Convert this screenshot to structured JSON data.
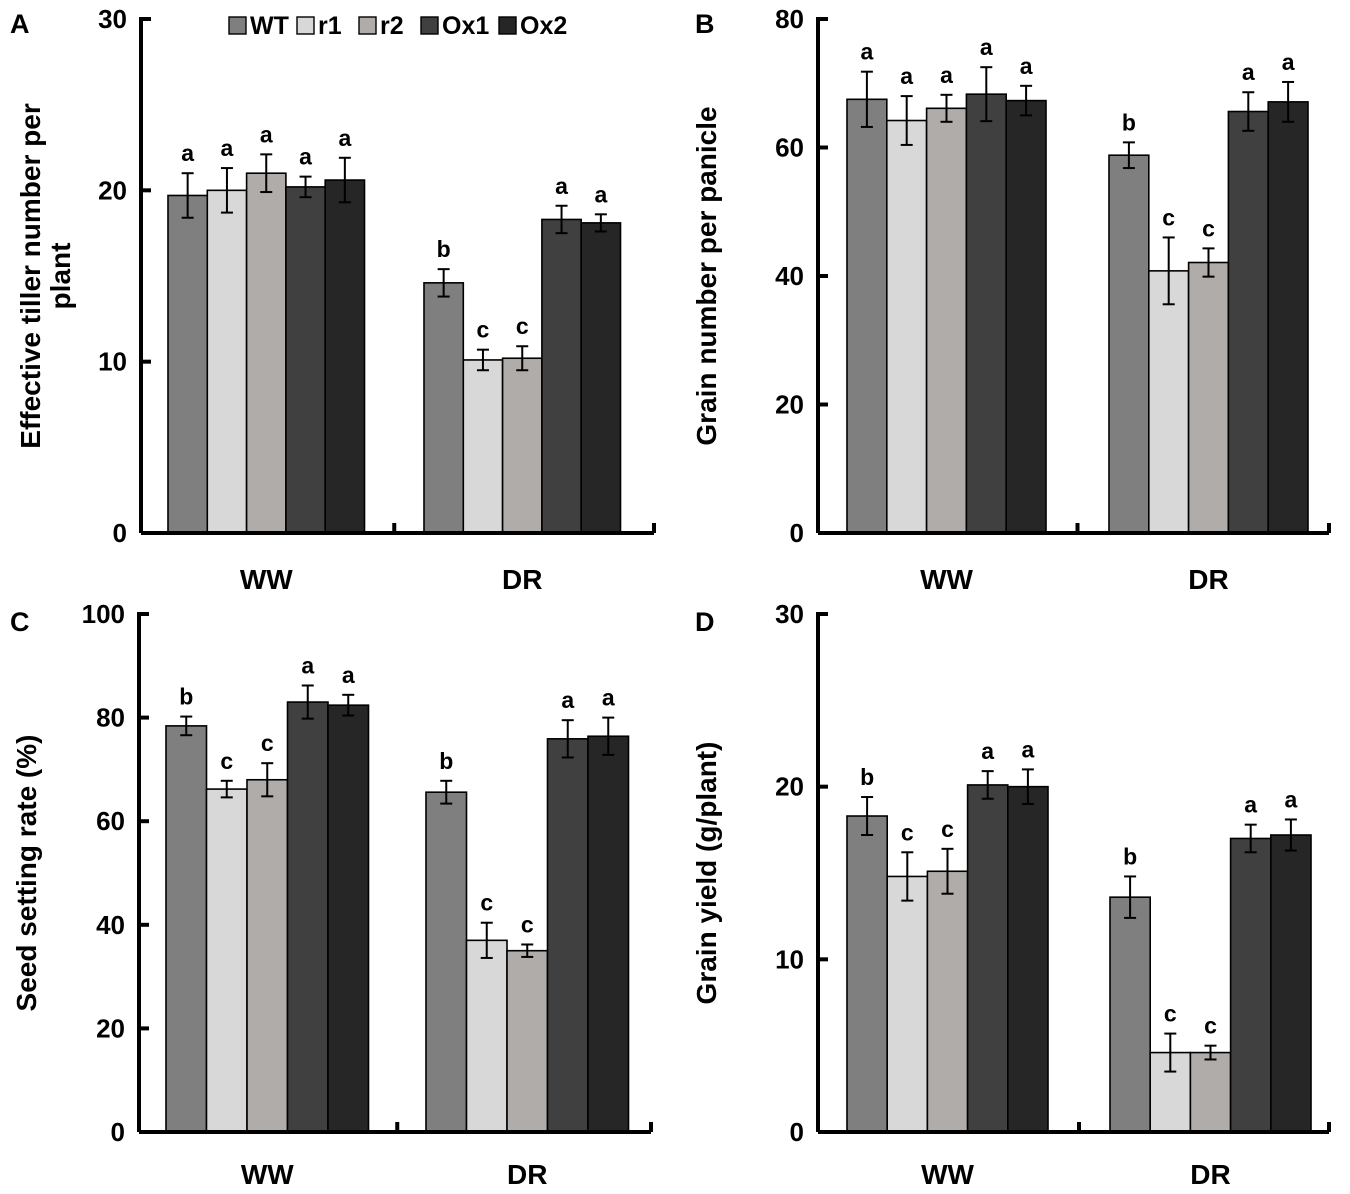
{
  "legend": [
    {
      "name": "WT",
      "color": "#7f7f7f"
    },
    {
      "name": "r1",
      "color": "#d8d8d8"
    },
    {
      "name": "r2",
      "color": "#b0aca9"
    },
    {
      "name": "Ox1",
      "color": "#404040"
    },
    {
      "name": "Ox2",
      "color": "#262626"
    }
  ],
  "chart_data": [
    {
      "panel": "A",
      "type": "bar",
      "title": "",
      "ylabel": "Effective tiller number per plant",
      "ylabel_lines": [
        "Effective tiller number per",
        "plant"
      ],
      "xlabel": "",
      "categories": [
        "WW",
        "DR"
      ],
      "ylim": [
        0,
        30
      ],
      "yticks": [
        0,
        10,
        20,
        30
      ],
      "series": [
        {
          "name": "WT",
          "values": [
            19.7,
            14.6
          ],
          "errors": [
            1.3,
            0.8
          ],
          "labels": [
            "a",
            "b"
          ]
        },
        {
          "name": "r1",
          "values": [
            20.0,
            10.1
          ],
          "errors": [
            1.3,
            0.6
          ],
          "labels": [
            "a",
            "c"
          ]
        },
        {
          "name": "r2",
          "values": [
            21.0,
            10.2
          ],
          "errors": [
            1.1,
            0.7
          ],
          "labels": [
            "a",
            "c"
          ]
        },
        {
          "name": "Ox1",
          "values": [
            20.2,
            18.3
          ],
          "errors": [
            0.6,
            0.8
          ],
          "labels": [
            "a",
            "a"
          ]
        },
        {
          "name": "Ox2",
          "values": [
            20.6,
            18.1
          ],
          "errors": [
            1.3,
            0.5
          ],
          "labels": [
            "a",
            "a"
          ]
        }
      ]
    },
    {
      "panel": "B",
      "type": "bar",
      "title": "",
      "ylabel": "Grain number per panicle",
      "ylabel_lines": [
        "Grain number per panicle"
      ],
      "xlabel": "",
      "categories": [
        "WW",
        "DR"
      ],
      "ylim": [
        0,
        80
      ],
      "yticks": [
        0,
        20,
        40,
        60,
        80
      ],
      "series": [
        {
          "name": "WT",
          "values": [
            67.5,
            58.8
          ],
          "errors": [
            4.3,
            2.0
          ],
          "labels": [
            "a",
            "b"
          ]
        },
        {
          "name": "r1",
          "values": [
            64.2,
            40.8
          ],
          "errors": [
            3.8,
            5.2
          ],
          "labels": [
            "a",
            "c"
          ]
        },
        {
          "name": "r2",
          "values": [
            66.1,
            42.1
          ],
          "errors": [
            2.1,
            2.2
          ],
          "labels": [
            "a",
            "c"
          ]
        },
        {
          "name": "Ox1",
          "values": [
            68.3,
            65.6
          ],
          "errors": [
            4.2,
            3.0
          ],
          "labels": [
            "a",
            "a"
          ]
        },
        {
          "name": "Ox2",
          "values": [
            67.3,
            67.1
          ],
          "errors": [
            2.3,
            3.1
          ],
          "labels": [
            "a",
            "a"
          ]
        }
      ]
    },
    {
      "panel": "C",
      "type": "bar",
      "title": "",
      "ylabel": "Seed setting rate (%)",
      "ylabel_lines": [
        "Seed setting rate (%)"
      ],
      "xlabel": "",
      "categories": [
        "WW",
        "DR"
      ],
      "ylim": [
        0,
        100
      ],
      "yticks": [
        0,
        20,
        40,
        60,
        80,
        100
      ],
      "series": [
        {
          "name": "WT",
          "values": [
            78.4,
            65.6
          ],
          "errors": [
            1.8,
            2.2
          ],
          "labels": [
            "b",
            "b"
          ]
        },
        {
          "name": "r1",
          "values": [
            66.2,
            37.0
          ],
          "errors": [
            1.6,
            3.4
          ],
          "labels": [
            "c",
            "c"
          ]
        },
        {
          "name": "r2",
          "values": [
            68.0,
            35.0
          ],
          "errors": [
            3.2,
            1.2
          ],
          "labels": [
            "c",
            "c"
          ]
        },
        {
          "name": "Ox1",
          "values": [
            83.0,
            75.9
          ],
          "errors": [
            3.2,
            3.6
          ],
          "labels": [
            "a",
            "a"
          ]
        },
        {
          "name": "Ox2",
          "values": [
            82.4,
            76.4
          ],
          "errors": [
            2.0,
            3.6
          ],
          "labels": [
            "a",
            "a"
          ]
        }
      ]
    },
    {
      "panel": "D",
      "type": "bar",
      "title": "",
      "ylabel": "Grain yield (g/plant)",
      "ylabel_lines": [
        "Grain yield (g/plant)"
      ],
      "xlabel": "",
      "categories": [
        "WW",
        "DR"
      ],
      "ylim": [
        0,
        30
      ],
      "yticks": [
        0,
        10,
        20,
        30
      ],
      "series": [
        {
          "name": "WT",
          "values": [
            18.3,
            13.6
          ],
          "errors": [
            1.1,
            1.2
          ],
          "labels": [
            "b",
            "b"
          ]
        },
        {
          "name": "r1",
          "values": [
            14.8,
            4.6
          ],
          "errors": [
            1.4,
            1.1
          ],
          "labels": [
            "c",
            "c"
          ]
        },
        {
          "name": "r2",
          "values": [
            15.1,
            4.6
          ],
          "errors": [
            1.3,
            0.4
          ],
          "labels": [
            "c",
            "c"
          ]
        },
        {
          "name": "Ox1",
          "values": [
            20.1,
            17.0
          ],
          "errors": [
            0.8,
            0.8
          ],
          "labels": [
            "a",
            "a"
          ]
        },
        {
          "name": "Ox2",
          "values": [
            20.0,
            17.2
          ],
          "errors": [
            1.0,
            0.9
          ],
          "labels": [
            "a",
            "a"
          ]
        }
      ]
    }
  ]
}
